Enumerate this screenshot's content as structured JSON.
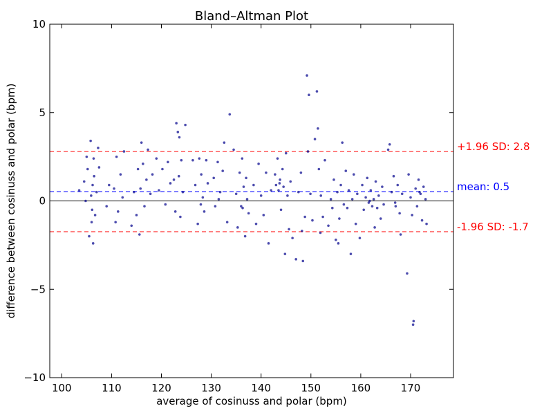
{
  "chart_data": {
    "type": "scatter",
    "title": "Bland–Altman Plot",
    "xlabel": "average of cosinuss and polar (bpm)",
    "ylabel": "difference between cosinuss and polar (bpm)",
    "xlim": [
      97.6,
      178.6
    ],
    "ylim": [
      -10,
      10
    ],
    "xticks": [
      100,
      110,
      120,
      130,
      140,
      150,
      160,
      170
    ],
    "yticks": [
      -10,
      -5,
      0,
      5,
      10
    ],
    "ytick_labels": [
      "−10",
      "−5",
      "0",
      "5",
      "10"
    ],
    "grid": false,
    "point_color": "#00008b",
    "reference_lines": [
      {
        "value": 2.8,
        "label": "+1.96 SD: 2.8",
        "color": "#ff0000",
        "style": "dashed"
      },
      {
        "value": 0.53,
        "label": "mean: 0.5",
        "color": "#0000ff",
        "style": "dashed"
      },
      {
        "value": -1.74,
        "label": "-1.96 SD: -1.7",
        "color": "#ff0000",
        "style": "dashed"
      },
      {
        "value": 0,
        "label": "",
        "color": "#000000",
        "style": "solid"
      }
    ],
    "points": [
      [
        105.2,
        1.8
      ],
      [
        105.5,
        -2.0
      ],
      [
        105.8,
        3.4
      ],
      [
        106,
        -1.2
      ],
      [
        106.2,
        0.9
      ],
      [
        106.4,
        2.4
      ],
      [
        106.1,
        -0.5
      ],
      [
        105.9,
        0.3
      ],
      [
        106.5,
        1.4
      ],
      [
        106.3,
        -2.4
      ],
      [
        107,
        0.5
      ],
      [
        107.3,
        3.0
      ],
      [
        104.5,
        1.1
      ],
      [
        104.8,
        0.0
      ],
      [
        105,
        2.5
      ],
      [
        106.7,
        -0.8
      ],
      [
        103.5,
        0.6
      ],
      [
        107.5,
        1.9
      ],
      [
        110.5,
        0.7
      ],
      [
        111,
        2.5
      ],
      [
        111.3,
        -0.6
      ],
      [
        111.8,
        1.5
      ],
      [
        112.2,
        0.2
      ],
      [
        110.8,
        -1.2
      ],
      [
        112.5,
        2.8
      ],
      [
        109,
        -0.3
      ],
      [
        109.5,
        0.9
      ],
      [
        114.5,
        0.5
      ],
      [
        115,
        -0.8
      ],
      [
        115.3,
        1.8
      ],
      [
        115.6,
        -1.9
      ],
      [
        115.8,
        0.7
      ],
      [
        116,
        3.3
      ],
      [
        116.3,
        2.1
      ],
      [
        116.6,
        -0.3
      ],
      [
        117,
        1.2
      ],
      [
        117.3,
        2.9
      ],
      [
        117.8,
        0.4
      ],
      [
        114,
        -1.4
      ],
      [
        118.2,
        1.5
      ],
      [
        119,
        2.4
      ],
      [
        119.5,
        0.6
      ],
      [
        120.2,
        1.8
      ],
      [
        120.8,
        -0.2
      ],
      [
        121.3,
        2.2
      ],
      [
        121.8,
        1.0
      ],
      [
        122.5,
        1.2
      ],
      [
        123,
        4.4
      ],
      [
        123.3,
        3.9
      ],
      [
        123.6,
        3.6
      ],
      [
        123.8,
        -0.9
      ],
      [
        124,
        2.3
      ],
      [
        124.3,
        0.5
      ],
      [
        124.8,
        4.3
      ],
      [
        122.8,
        -0.6
      ],
      [
        123.5,
        1.4
      ],
      [
        126.3,
        2.3
      ],
      [
        126.8,
        0.9
      ],
      [
        127.3,
        -1.3
      ],
      [
        127.6,
        2.4
      ],
      [
        128,
        1.5
      ],
      [
        128.3,
        0.2
      ],
      [
        128.6,
        -0.6
      ],
      [
        129,
        2.3
      ],
      [
        129.3,
        1.0
      ],
      [
        127.9,
        -0.2
      ],
      [
        130.5,
        1.3
      ],
      [
        130.8,
        -0.3
      ],
      [
        131.3,
        2.2
      ],
      [
        131.8,
        0.5
      ],
      [
        132.3,
        1.7
      ],
      [
        132.6,
        3.3
      ],
      [
        133.2,
        -1.2
      ],
      [
        133.7,
        4.9
      ],
      [
        131.5,
        0.1
      ],
      [
        134.5,
        2.9
      ],
      [
        135,
        0.4
      ],
      [
        135.3,
        -1.5
      ],
      [
        135.7,
        1.6
      ],
      [
        136,
        -0.3
      ],
      [
        136.2,
        2.4
      ],
      [
        136.5,
        0.8
      ],
      [
        136.8,
        -2.0
      ],
      [
        137,
        1.3
      ],
      [
        137.2,
        0.1
      ],
      [
        137.5,
        -0.7
      ],
      [
        136.3,
        -0.4
      ],
      [
        138.5,
        0.9
      ],
      [
        139,
        -1.3
      ],
      [
        139.5,
        2.1
      ],
      [
        140,
        0.3
      ],
      [
        140.5,
        -0.8
      ],
      [
        141,
        1.6
      ],
      [
        141.5,
        -2.4
      ],
      [
        142,
        0.6
      ],
      [
        142.8,
        1.5
      ],
      [
        143,
        0.9
      ],
      [
        143.3,
        2.4
      ],
      [
        143.5,
        0.6
      ],
      [
        143.8,
        1.2
      ],
      [
        144,
        -0.5
      ],
      [
        144.3,
        1.8
      ],
      [
        144.5,
        0.8
      ],
      [
        144.8,
        -3.0
      ],
      [
        145,
        2.7
      ],
      [
        145.3,
        0.3
      ],
      [
        145.6,
        -1.6
      ],
      [
        145.9,
        1.1
      ],
      [
        146.3,
        -2.1
      ],
      [
        143.7,
        1.0
      ],
      [
        147,
        -3.3
      ],
      [
        147.5,
        0.5
      ],
      [
        148,
        1.6
      ],
      [
        148.4,
        -3.4
      ],
      [
        148.8,
        -0.9
      ],
      [
        149.2,
        7.1
      ],
      [
        149.4,
        2.8
      ],
      [
        149.6,
        6.0
      ],
      [
        149.9,
        0.4
      ],
      [
        150.3,
        -1.1
      ],
      [
        148.2,
        -1.7
      ],
      [
        150.8,
        3.5
      ],
      [
        151.2,
        6.2
      ],
      [
        151.4,
        4.1
      ],
      [
        151.6,
        1.8
      ],
      [
        152,
        0.3
      ],
      [
        152.4,
        -0.9
      ],
      [
        152.8,
        2.3
      ],
      [
        151.9,
        -1.8
      ],
      [
        153.5,
        -1.4
      ],
      [
        154,
        0.1
      ],
      [
        154.3,
        -0.4
      ],
      [
        154.6,
        1.2
      ],
      [
        155,
        -2.2
      ],
      [
        155.3,
        0.5
      ],
      [
        155.7,
        -1.0
      ],
      [
        156,
        0.9
      ],
      [
        156.3,
        3.3
      ],
      [
        156.6,
        -0.2
      ],
      [
        155.5,
        -2.4
      ],
      [
        157,
        1.7
      ],
      [
        157.3,
        -0.4
      ],
      [
        157.6,
        0.6
      ],
      [
        158,
        -3.0
      ],
      [
        158.3,
        0.1
      ],
      [
        158.6,
        1.5
      ],
      [
        159,
        -1.3
      ],
      [
        159.3,
        0.4
      ],
      [
        159.8,
        -2.1
      ],
      [
        160.3,
        0.9
      ],
      [
        160.6,
        -0.5
      ],
      [
        161,
        0.2
      ],
      [
        161.3,
        1.3
      ],
      [
        161.6,
        -0.1
      ],
      [
        162,
        0.6
      ],
      [
        162.3,
        -0.3
      ],
      [
        162.6,
        0.1
      ],
      [
        163,
        1.1
      ],
      [
        163.3,
        -0.4
      ],
      [
        163.6,
        0.3
      ],
      [
        164,
        -1.0
      ],
      [
        164.3,
        0.8
      ],
      [
        164.6,
        -0.2
      ],
      [
        162.8,
        -1.5
      ],
      [
        161.8,
        0.0
      ],
      [
        165.5,
        2.9
      ],
      [
        165.8,
        3.2
      ],
      [
        166.2,
        0.5
      ],
      [
        166.6,
        1.4
      ],
      [
        167,
        -0.3
      ],
      [
        167.4,
        0.9
      ],
      [
        167.8,
        -0.7
      ],
      [
        168,
        -1.9
      ],
      [
        168.3,
        0.4
      ],
      [
        166.9,
        -0.1
      ],
      [
        169.3,
        -4.1
      ],
      [
        169.6,
        1.5
      ],
      [
        170,
        0.2
      ],
      [
        170.3,
        -0.8
      ],
      [
        170.6,
        -6.8
      ],
      [
        170.5,
        -7.0
      ],
      [
        171,
        0.7
      ],
      [
        171.3,
        -0.3
      ],
      [
        171.6,
        1.2
      ],
      [
        172,
        0.4
      ],
      [
        172.3,
        -1.1
      ],
      [
        172.6,
        0.8
      ],
      [
        173,
        0.1
      ],
      [
        173.2,
        -1.3
      ],
      [
        171.8,
        0.5
      ]
    ]
  }
}
